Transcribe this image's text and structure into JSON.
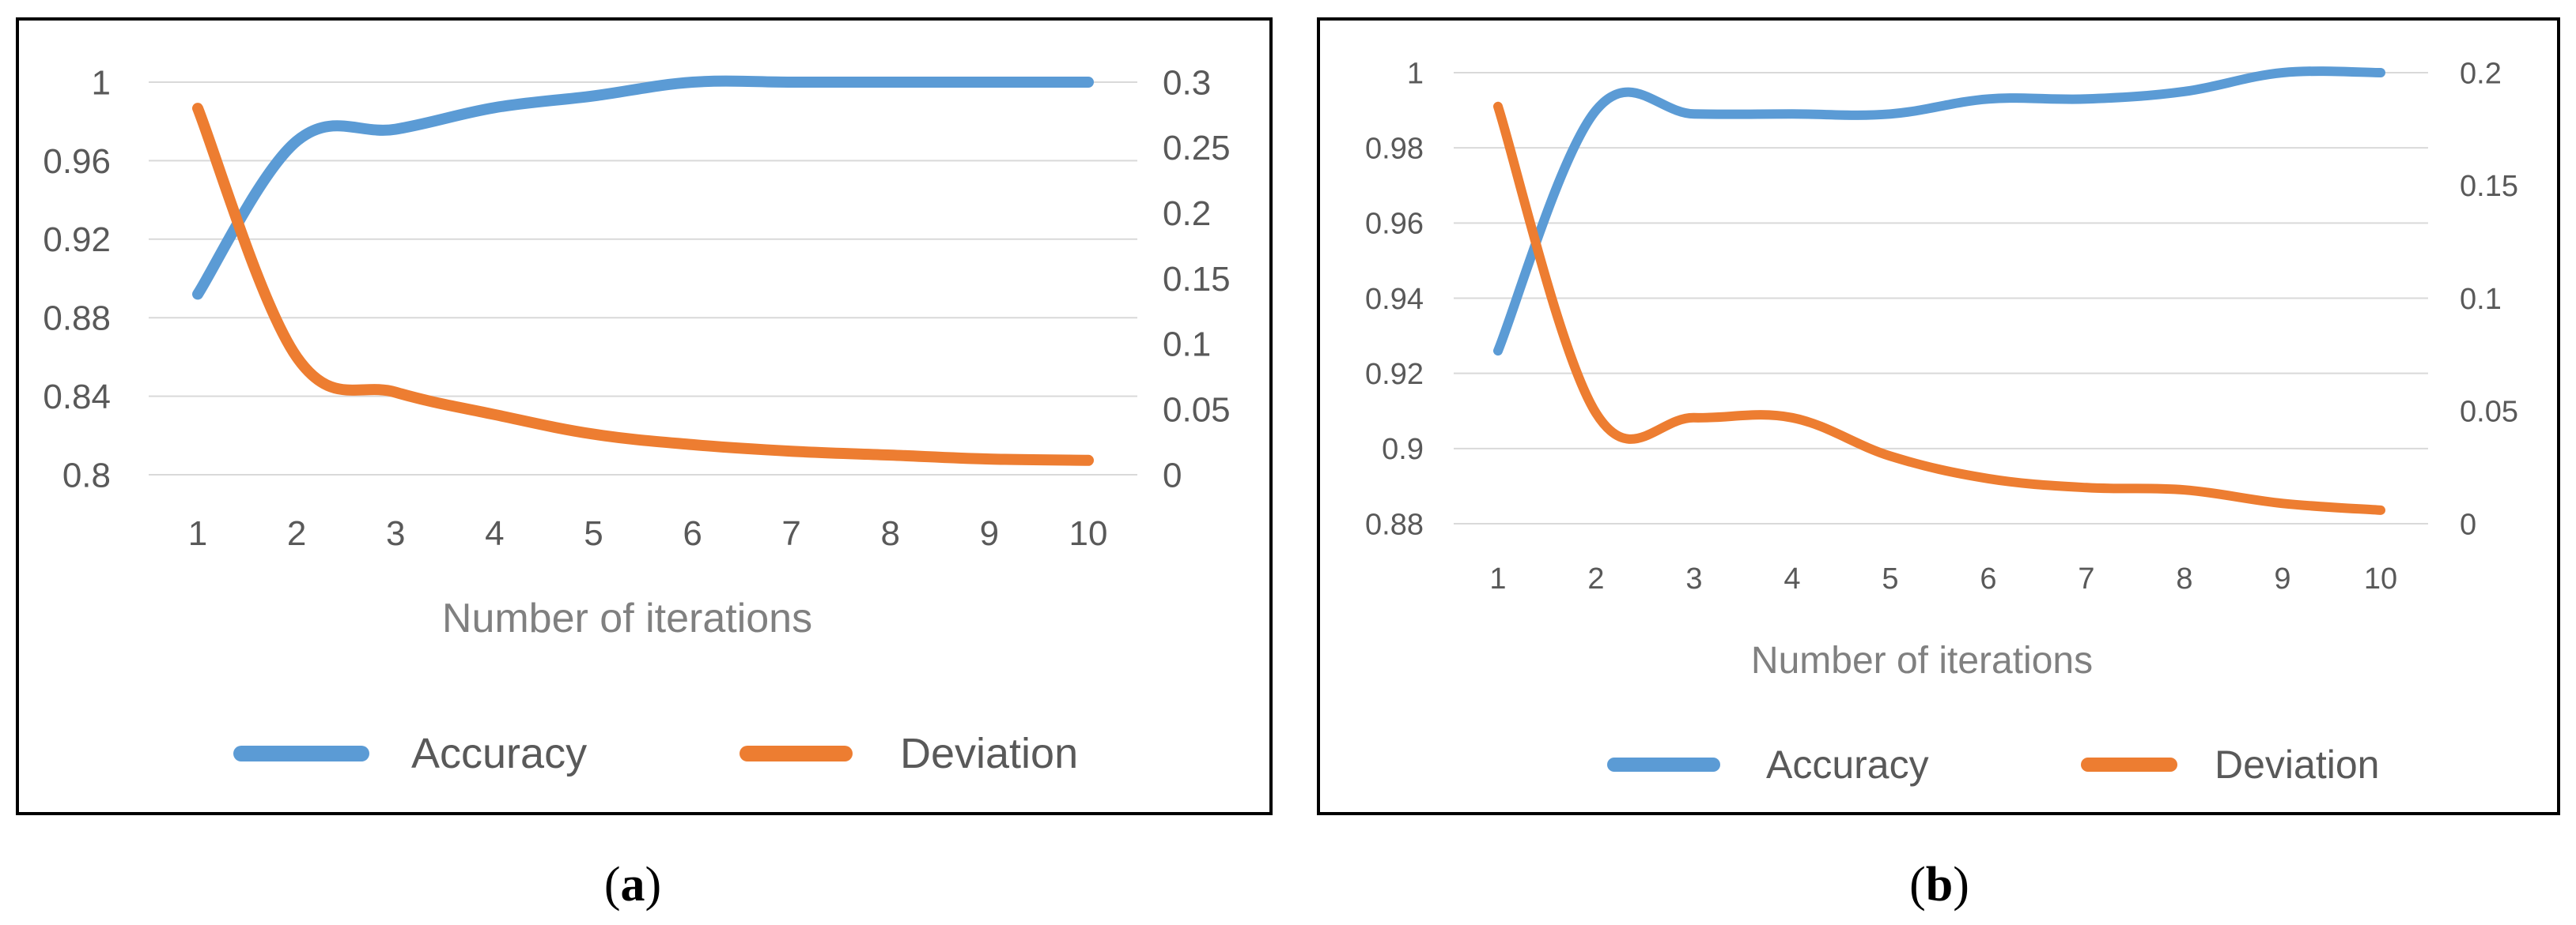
{
  "chart_data": [
    {
      "type": "line",
      "panel_label": "a",
      "xlabel": "Number of iterations",
      "categories": [
        "1",
        "2",
        "3",
        "4",
        "5",
        "6",
        "7",
        "8",
        "9",
        "10"
      ],
      "y_left": {
        "min": 0.8,
        "max": 1.0,
        "ticks": [
          "0.8",
          "0.84",
          "0.88",
          "0.92",
          "0.96",
          "1"
        ]
      },
      "y_right": {
        "min": 0,
        "max": 0.3,
        "ticks": [
          "0",
          "0.05",
          "0.1",
          "0.15",
          "0.2",
          "0.25",
          "0.3"
        ]
      },
      "grid": true,
      "legend_position": "bottom",
      "series": [
        {
          "name": "Accuracy",
          "axis": "left",
          "color": "#5b9bd5",
          "values": [
            0.892,
            0.97,
            0.976,
            0.987,
            0.993,
            1.0,
            1.0,
            1.0,
            1.0,
            1.0
          ]
        },
        {
          "name": "Deviation",
          "axis": "right",
          "color": "#ed7d31",
          "values": [
            0.28,
            0.09,
            0.063,
            0.046,
            0.031,
            0.023,
            0.018,
            0.015,
            0.012,
            0.011
          ]
        }
      ]
    },
    {
      "type": "line",
      "panel_label": "b",
      "xlabel": "Number of iterations",
      "categories": [
        "1",
        "2",
        "3",
        "4",
        "5",
        "6",
        "7",
        "8",
        "9",
        "10"
      ],
      "y_left": {
        "min": 0.88,
        "max": 1.0,
        "ticks": [
          "0.88",
          "0.9",
          "0.92",
          "0.94",
          "0.96",
          "0.98",
          "1"
        ]
      },
      "y_right": {
        "min": 0,
        "max": 0.2,
        "ticks": [
          "0",
          "0.05",
          "0.1",
          "0.15",
          "0.2"
        ]
      },
      "grid": true,
      "legend_position": "bottom",
      "series": [
        {
          "name": "Accuracy",
          "axis": "left",
          "color": "#5b9bd5",
          "values": [
            0.926,
            0.99,
            0.989,
            0.989,
            0.989,
            0.993,
            0.993,
            0.995,
            1.0,
            1.0
          ]
        },
        {
          "name": "Deviation",
          "axis": "right",
          "color": "#ed7d31",
          "values": [
            0.185,
            0.049,
            0.047,
            0.047,
            0.03,
            0.02,
            0.016,
            0.015,
            0.009,
            0.006
          ]
        }
      ]
    }
  ]
}
